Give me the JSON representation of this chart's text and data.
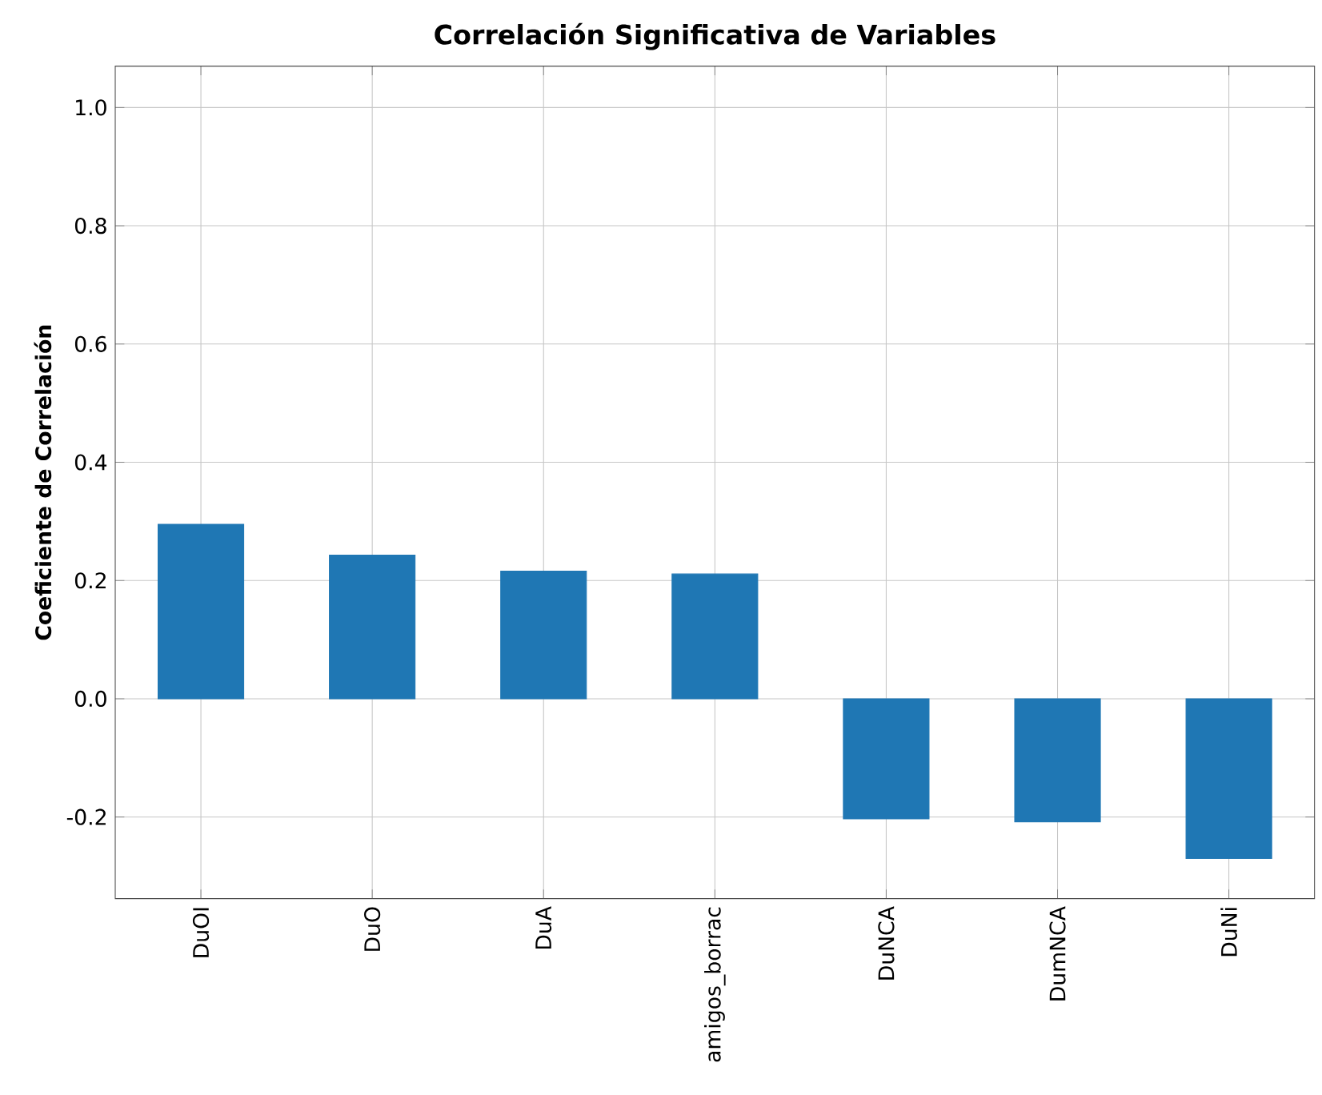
{
  "chart_data": {
    "type": "bar",
    "title": "Correlación Significativa de Variables",
    "ylabel": "Coeficiente de Correlación",
    "categories": [
      "DuOI",
      "DuO",
      "DuA",
      "amigos_borrac",
      "DuNCA",
      "DumNCA",
      "DuNi"
    ],
    "values": [
      0.295,
      0.243,
      0.216,
      0.211,
      -0.203,
      -0.208,
      -0.27
    ],
    "color": "#1f77b4",
    "ylim": [
      -0.338,
      1.07
    ],
    "yticks": [
      -0.2,
      {
        "value": 0,
        "label": "0.0"
      },
      0.2,
      0.4,
      0.6,
      0.8,
      {
        "value": 1,
        "label": "1.0"
      }
    ],
    "grid": true
  }
}
